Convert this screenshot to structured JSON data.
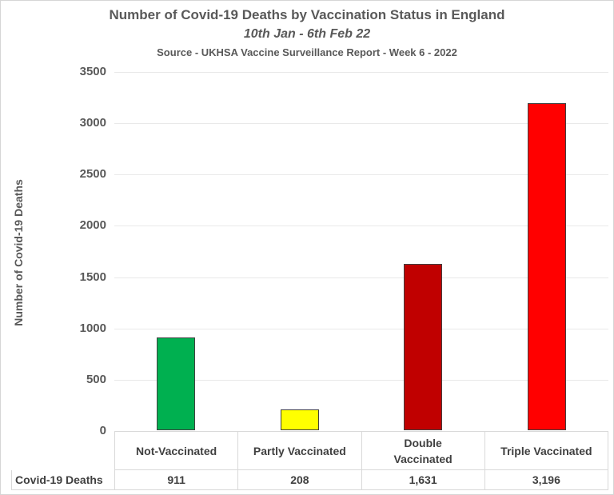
{
  "chart_data": {
    "type": "bar",
    "title": "Number of Covid-19 Deaths by Vaccination Status in England",
    "subtitle": "10th Jan - 6th Feb 22",
    "source": "Source - UKHSA Vaccine Surveillance Report - Week 6 - 2022",
    "ylabel": "Number of Covid-19 Deaths",
    "xlabel": "",
    "categories": [
      "Not-Vaccinated",
      "Partly Vaccinated",
      "Double\nVaccinated",
      "Triple Vaccinated"
    ],
    "values": [
      911,
      208,
      1631,
      3196
    ],
    "value_labels": [
      "911",
      "208",
      "1,631",
      "3,196"
    ],
    "bar_colors": [
      "#00B050",
      "#FFFF00",
      "#C00000",
      "#FF0000"
    ],
    "ylim": [
      0,
      3500
    ],
    "ytick_interval": 500,
    "yticks": [
      "3500",
      "3000",
      "2500",
      "2000",
      "1500",
      "1000",
      "500",
      "0"
    ],
    "grid": true,
    "legend": false,
    "data_table": {
      "row_label": "Covid-19 Deaths"
    }
  }
}
